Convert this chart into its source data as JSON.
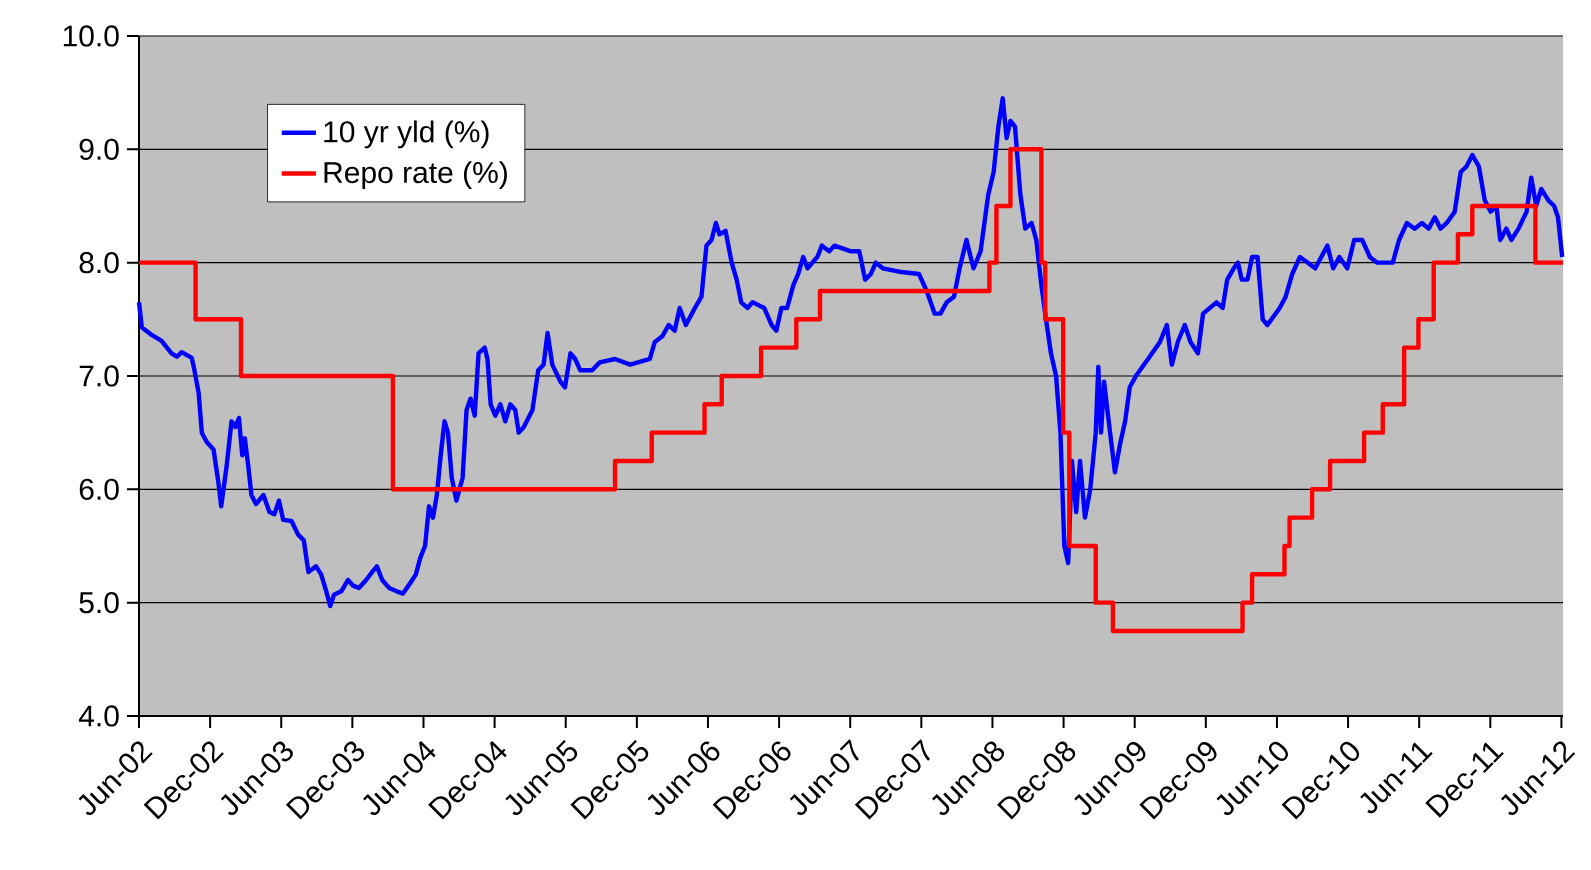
{
  "chart_data": {
    "type": "line",
    "grid": "y",
    "legend": "top left",
    "xlim": [
      "2002-06-01",
      "2012-06-05"
    ],
    "xticks": [
      {
        "value": "2002-06",
        "label": "Jun-02"
      },
      {
        "value": "2002-12",
        "label": "Dec-02"
      },
      {
        "value": "2003-06",
        "label": "Jun-03"
      },
      {
        "value": "2003-12",
        "label": "Dec-03"
      },
      {
        "value": "2004-06",
        "label": "Jun-04"
      },
      {
        "value": "2004-12",
        "label": "Dec-04"
      },
      {
        "value": "2005-06",
        "label": "Jun-05"
      },
      {
        "value": "2005-12",
        "label": "Dec-05"
      },
      {
        "value": "2006-06",
        "label": "Jun-06"
      },
      {
        "value": "2006-12",
        "label": "Dec-06"
      },
      {
        "value": "2007-06",
        "label": "Jun-07"
      },
      {
        "value": "2007-12",
        "label": "Dec-07"
      },
      {
        "value": "2008-06",
        "label": "Jun-08"
      },
      {
        "value": "2008-12",
        "label": "Dec-08"
      },
      {
        "value": "2009-06",
        "label": "Jun-09"
      },
      {
        "value": "2009-12",
        "label": "Dec-09"
      },
      {
        "value": "2010-06",
        "label": "Jun-10"
      },
      {
        "value": "2010-12",
        "label": "Dec-10"
      },
      {
        "value": "2011-06",
        "label": "Jun-11"
      },
      {
        "value": "2011-12",
        "label": "Dec-11"
      },
      {
        "value": "2012-06",
        "label": "Jun-12"
      }
    ],
    "ylim": [
      4,
      10
    ],
    "yticks": [
      {
        "value": 4,
        "label": "4.0"
      },
      {
        "value": 5,
        "label": "5.0"
      },
      {
        "value": 6,
        "label": "6.0"
      },
      {
        "value": 7,
        "label": "7.0"
      },
      {
        "value": 8,
        "label": "8.0"
      },
      {
        "value": 9,
        "label": "9.0"
      },
      {
        "value": 10,
        "label": "10.0"
      }
    ],
    "series": [
      {
        "name": "10 yr yld (%)",
        "color": "#0000ff",
        "x": [
          "2002-06-01",
          "2002-06-08",
          "2002-07-04",
          "2002-07-29",
          "2002-08-24",
          "2002-09-07",
          "2002-09-19",
          "2002-10-15",
          "2002-10-22",
          "2002-11-02",
          "2002-11-10",
          "2002-11-22",
          "2002-12-10",
          "2002-12-23",
          "2002-12-30",
          "2003-01-13",
          "2003-01-26",
          "2003-02-05",
          "2003-02-13",
          "2003-02-21",
          "2003-02-27",
          "2003-03-08",
          "2003-03-16",
          "2003-03-28",
          "2003-04-16",
          "2003-05-01",
          "2003-05-14",
          "2003-05-26",
          "2003-06-06",
          "2003-06-27",
          "2003-07-14",
          "2003-07-29",
          "2003-08-10",
          "2003-08-30",
          "2003-09-12",
          "2003-09-25",
          "2003-10-05",
          "2003-10-15",
          "2003-11-03",
          "2003-11-20",
          "2003-12-03",
          "2003-12-18",
          "2004-01-06",
          "2004-01-24",
          "2004-02-03",
          "2004-02-16",
          "2004-03-04",
          "2004-03-24",
          "2004-04-09",
          "2004-04-29",
          "2004-05-12",
          "2004-05-24",
          "2004-06-05",
          "2004-06-15",
          "2004-06-25",
          "2004-07-05",
          "2004-07-15",
          "2004-07-25",
          "2004-08-03",
          "2004-08-13",
          "2004-08-25",
          "2004-09-10",
          "2004-09-20",
          "2004-09-30",
          "2004-10-11",
          "2004-10-21",
          "2004-11-06",
          "2004-11-13",
          "2004-11-21",
          "2004-12-03",
          "2004-12-16",
          "2004-12-29",
          "2005-01-11",
          "2005-01-24",
          "2005-02-02",
          "2005-02-14",
          "2005-03-07",
          "2005-03-22",
          "2005-04-05",
          "2005-04-15",
          "2005-04-27",
          "2005-05-18",
          "2005-05-30",
          "2005-06-13",
          "2005-06-25",
          "2005-07-08",
          "2005-08-08",
          "2005-08-28",
          "2005-10-06",
          "2005-11-14",
          "2006-01-04",
          "2006-01-17",
          "2006-02-05",
          "2006-02-20",
          "2006-03-07",
          "2006-03-20",
          "2006-04-05",
          "2006-04-28",
          "2006-05-15",
          "2006-05-28",
          "2006-06-10",
          "2006-06-21",
          "2006-06-30",
          "2006-07-16",
          "2006-08-01",
          "2006-08-14",
          "2006-08-26",
          "2006-09-11",
          "2006-09-24",
          "2006-10-24",
          "2006-11-12",
          "2006-11-24",
          "2006-12-07",
          "2006-12-22",
          "2007-01-07",
          "2007-01-20",
          "2007-02-02",
          "2007-02-12",
          "2007-03-08",
          "2007-03-20",
          "2007-04-08",
          "2007-04-21",
          "2007-06-03",
          "2007-06-24",
          "2007-07-09",
          "2007-07-24",
          "2007-08-06",
          "2007-08-24",
          "2007-10-05",
          "2007-11-25",
          "2007-12-15",
          "2008-01-05",
          "2008-01-20",
          "2008-02-05",
          "2008-02-23",
          "2008-03-08",
          "2008-03-26",
          "2008-04-13",
          "2008-05-01",
          "2008-05-21",
          "2008-06-04",
          "2008-06-16",
          "2008-06-27",
          "2008-07-07",
          "2008-07-17",
          "2008-07-29",
          "2008-08-12",
          "2008-08-25",
          "2008-09-10",
          "2008-09-22",
          "2008-10-05",
          "2008-10-17",
          "2008-10-30",
          "2008-11-12",
          "2008-11-23",
          "2008-12-03",
          "2008-12-13",
          "2008-12-23",
          "2009-01-03",
          "2009-01-13",
          "2009-01-26",
          "2009-02-08",
          "2009-02-21",
          "2009-02-27",
          "2009-03-06",
          "2009-03-14",
          "2009-03-26",
          "2009-04-11",
          "2009-04-24",
          "2009-05-07",
          "2009-05-19",
          "2009-06-04",
          "2009-07-05",
          "2009-08-05",
          "2009-08-23",
          "2009-09-05",
          "2009-09-20",
          "2009-10-08",
          "2009-10-23",
          "2009-11-11",
          "2009-11-24",
          "2009-12-29",
          "2010-01-14",
          "2010-01-26",
          "2010-02-11",
          "2010-02-21",
          "2010-03-02",
          "2010-03-17",
          "2010-03-29",
          "2010-04-12",
          "2010-04-25",
          "2010-05-07",
          "2010-06-08",
          "2010-06-23",
          "2010-07-10",
          "2010-07-30",
          "2010-09-08",
          "2010-10-09",
          "2010-10-24",
          "2010-11-09",
          "2010-11-29",
          "2010-12-17",
          "2011-01-07",
          "2011-01-27",
          "2011-02-14",
          "2011-03-25",
          "2011-04-10",
          "2011-04-30",
          "2011-05-20",
          "2011-06-08",
          "2011-06-25",
          "2011-07-11",
          "2011-07-26",
          "2011-08-11",
          "2011-09-01",
          "2011-09-16",
          "2011-10-01",
          "2011-10-16",
          "2011-11-02",
          "2011-11-17",
          "2011-12-02",
          "2011-12-17",
          "2011-12-27",
          "2012-01-12",
          "2012-01-25",
          "2012-02-12",
          "2012-03-03",
          "2012-03-15",
          "2012-03-28",
          "2012-04-10",
          "2012-04-28",
          "2012-05-13",
          "2012-05-23",
          "2012-06-03"
        ],
        "values": [
          7.65,
          7.43,
          7.36,
          7.31,
          7.2,
          7.17,
          7.21,
          7.16,
          7.05,
          6.85,
          6.5,
          6.42,
          6.35,
          6.05,
          5.85,
          6.2,
          6.6,
          6.55,
          6.63,
          6.3,
          6.45,
          6.2,
          5.95,
          5.87,
          5.95,
          5.8,
          5.78,
          5.9,
          5.73,
          5.72,
          5.6,
          5.55,
          5.27,
          5.32,
          5.25,
          5.1,
          4.97,
          5.07,
          5.1,
          5.2,
          5.15,
          5.13,
          5.2,
          5.28,
          5.32,
          5.2,
          5.13,
          5.1,
          5.08,
          5.18,
          5.25,
          5.4,
          5.5,
          5.85,
          5.75,
          5.95,
          6.3,
          6.6,
          6.5,
          6.1,
          5.9,
          6.1,
          6.7,
          6.8,
          6.65,
          7.2,
          7.25,
          7.15,
          6.75,
          6.65,
          6.75,
          6.6,
          6.75,
          6.7,
          6.5,
          6.55,
          6.7,
          7.05,
          7.1,
          7.38,
          7.1,
          6.95,
          6.9,
          7.2,
          7.15,
          7.05,
          7.05,
          7.12,
          7.15,
          7.1,
          7.15,
          7.3,
          7.35,
          7.45,
          7.4,
          7.6,
          7.45,
          7.6,
          7.7,
          8.15,
          8.2,
          8.35,
          8.25,
          8.28,
          8.0,
          7.85,
          7.65,
          7.6,
          7.65,
          7.6,
          7.45,
          7.4,
          7.6,
          7.6,
          7.8,
          7.9,
          8.05,
          7.95,
          8.05,
          8.15,
          8.1,
          8.15,
          8.1,
          8.1,
          7.85,
          7.9,
          8.0,
          7.95,
          7.92,
          7.9,
          7.75,
          7.55,
          7.55,
          7.65,
          7.7,
          7.95,
          8.2,
          7.95,
          8.1,
          8.6,
          8.8,
          9.2,
          9.45,
          9.1,
          9.25,
          9.2,
          8.6,
          8.3,
          8.35,
          8.2,
          7.8,
          7.5,
          7.2,
          7.0,
          6.5,
          5.5,
          5.35,
          6.25,
          5.8,
          6.25,
          5.75,
          6.0,
          6.5,
          7.08,
          6.5,
          6.95,
          6.6,
          6.15,
          6.4,
          6.6,
          6.9,
          7.0,
          7.15,
          7.3,
          7.45,
          7.1,
          7.3,
          7.45,
          7.3,
          7.2,
          7.55,
          7.65,
          7.6,
          7.85,
          7.95,
          8.0,
          7.85,
          7.85,
          8.05,
          8.05,
          7.5,
          7.45,
          7.6,
          7.7,
          7.9,
          8.05,
          7.95,
          8.15,
          7.95,
          8.05,
          7.95,
          8.2,
          8.2,
          8.05,
          8.0,
          8.0,
          8.2,
          8.35,
          8.3,
          8.35,
          8.3,
          8.4,
          8.3,
          8.35,
          8.45,
          8.8,
          8.85,
          8.95,
          8.85,
          8.55,
          8.45,
          8.5,
          8.2,
          8.3,
          8.2,
          8.3,
          8.45,
          8.75,
          8.5,
          8.65,
          8.55,
          8.5,
          8.4,
          8.05
        ]
      },
      {
        "name": "Repo rate (%)",
        "color": "#ff0000",
        "type": "step",
        "x": [
          "2002-06-01",
          "2002-10-25",
          "2003-02-18",
          "2004-03-14",
          "2005-10-06",
          "2006-01-09",
          "2006-05-23",
          "2006-07-06",
          "2006-10-16",
          "2007-01-15",
          "2007-03-15",
          "2008-05-24",
          "2008-06-11",
          "2008-07-17",
          "2008-10-05",
          "2008-10-15",
          "2008-11-30",
          "2008-12-16",
          "2009-02-21",
          "2009-04-06",
          "2010-03-04",
          "2010-03-29",
          "2010-06-20",
          "2010-07-03",
          "2010-08-31",
          "2010-10-16",
          "2011-01-12",
          "2011-02-27",
          "2011-04-23",
          "2011-05-30",
          "2011-07-08",
          "2011-09-09",
          "2011-10-16",
          "2012-03-26",
          "2012-06-05"
        ],
        "values": [
          8.0,
          7.5,
          7.0,
          6.0,
          6.25,
          6.5,
          6.75,
          7.0,
          7.25,
          7.5,
          7.75,
          8.0,
          8.5,
          9.0,
          8.0,
          7.5,
          6.5,
          5.5,
          5.0,
          4.75,
          5.0,
          5.25,
          5.5,
          5.75,
          6.0,
          6.25,
          6.5,
          6.75,
          7.25,
          7.5,
          8.0,
          8.25,
          8.5,
          8.0,
          8.0
        ]
      }
    ]
  }
}
